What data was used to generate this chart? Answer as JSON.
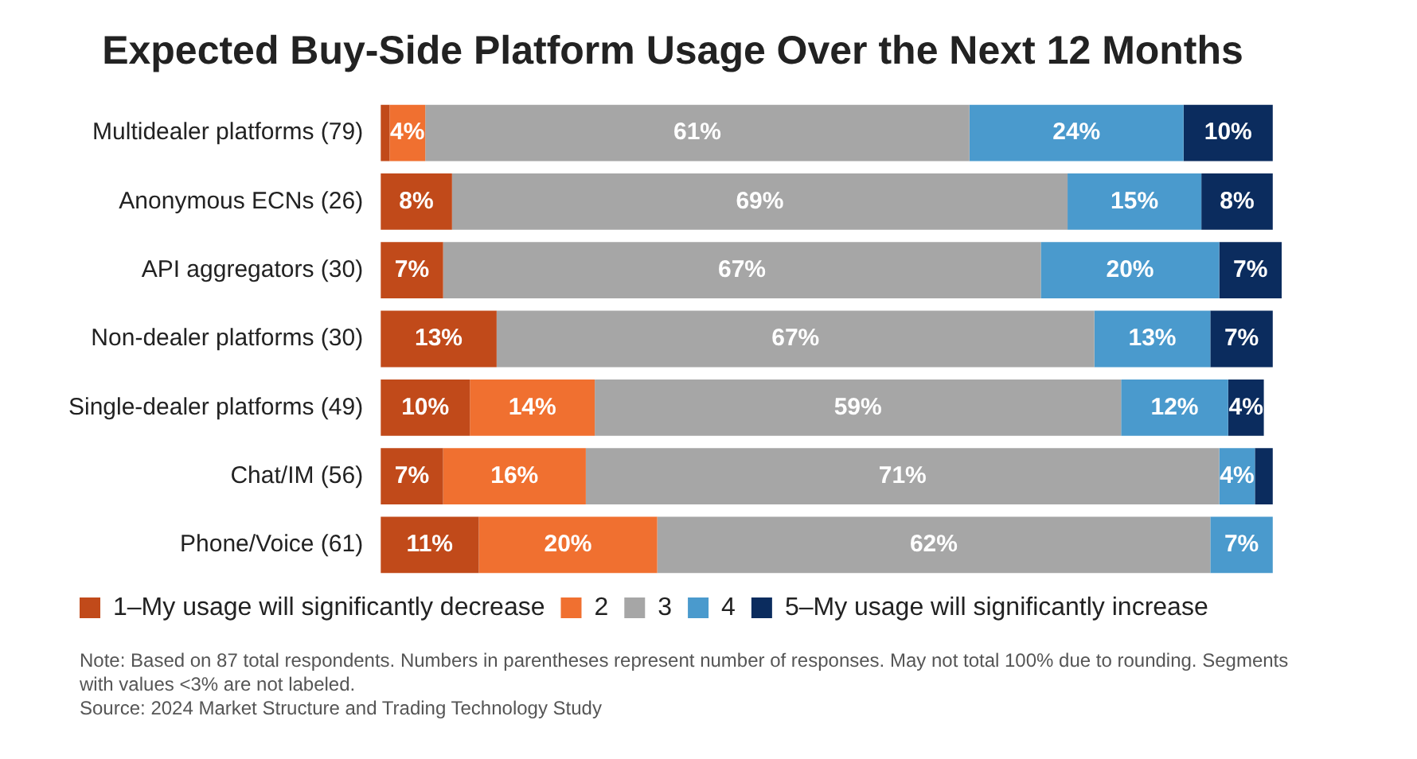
{
  "chart_data": {
    "type": "bar",
    "orientation": "horizontal",
    "stacked": true,
    "title": "Expected Buy-Side Platform Usage Over the Next 12 Months",
    "categories": [
      "Multidealer platforms (79)",
      "Anonymous ECNs (26)",
      "API aggregators (30)",
      "Non-dealer platforms (30)",
      "Single-dealer platforms (49)",
      "Chat/IM (56)",
      "Phone/Voice (61)"
    ],
    "xlim": [
      0,
      101
    ],
    "tick_labels": "y",
    "legend": "bottom left",
    "series": [
      {
        "name": "1–My usage will significantly decrease",
        "color": "#c14a1a",
        "values": [
          1,
          8,
          7,
          13,
          10,
          7,
          11
        ],
        "value_labels": [
          null,
          "8%",
          "7%",
          "13%",
          "10%",
          "7%",
          "11%"
        ]
      },
      {
        "name": "2",
        "color": "#f07030",
        "values": [
          4,
          null,
          null,
          null,
          14,
          16,
          20
        ],
        "value_labels": [
          "4%",
          null,
          null,
          null,
          "14%",
          "16%",
          "20%"
        ]
      },
      {
        "name": "3",
        "color": "#a6a6a6",
        "values": [
          61,
          69,
          67,
          67,
          59,
          71,
          62
        ],
        "value_labels": [
          "61%",
          "69%",
          "67%",
          "67%",
          "59%",
          "71%",
          "62%"
        ]
      },
      {
        "name": "4",
        "color": "#4a9acd",
        "values": [
          24,
          15,
          20,
          13,
          12,
          4,
          7
        ],
        "value_labels": [
          "24%",
          "15%",
          "20%",
          "13%",
          "12%",
          "4%",
          "7%"
        ]
      },
      {
        "name": "5–My usage will significantly increase",
        "color": "#0b2c5e",
        "values": [
          10,
          8,
          7,
          7,
          4,
          2,
          null
        ],
        "value_labels": [
          "10%",
          "8%",
          "7%",
          "7%",
          "4%",
          null,
          null
        ]
      }
    ],
    "annotations": [
      "Note: Based on 87 total respondents. Numbers in parentheses represent number of responses. May not total 100% due to rounding. Segments with values <3% are not labeled.",
      "Source: 2024 Market Structure and Trading Technology Study"
    ]
  }
}
